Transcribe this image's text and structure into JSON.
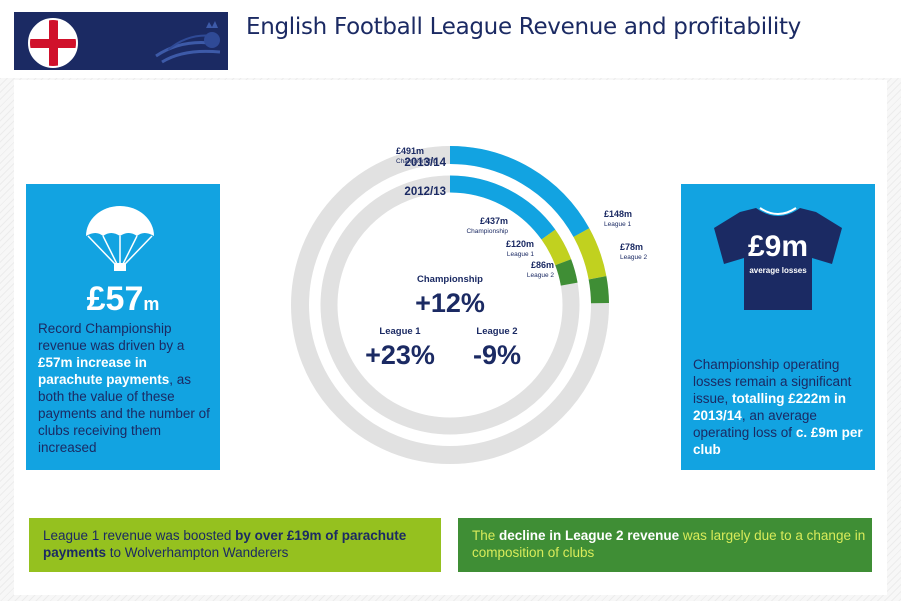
{
  "title": "English Football League Revenue and profitability",
  "colors": {
    "navy": "#1b2a63",
    "cyan": "#12a3e1",
    "lime": "#c1d11f",
    "green": "#3f8e35",
    "ring": "#e1e1e1"
  },
  "left_card": {
    "icon": "parachute-icon",
    "big_value": "£57",
    "big_unit": "m",
    "text_1": "Record Championship revenue was driven by a ",
    "text_bold": "£57m increase in parachute payments",
    "text_2": ", as both the value of these payments and the number of clubs receiving them increased"
  },
  "right_card": {
    "icon": "shirt-icon",
    "big_value": "£9m",
    "big_sub": "average losses",
    "text_1": "Championship operating losses remain a significant issue, ",
    "text_bold_1": "totalling £222m in 2013/14",
    "text_2": ", an average operating loss of ",
    "text_bold_2": "c. £9m per club"
  },
  "center": {
    "championship_label": "Championship",
    "championship_change": "+12%",
    "league1_label": "League 1",
    "league1_change": "+23%",
    "league2_label": "League 2",
    "league2_change": "-9%"
  },
  "bottom": {
    "left_1": "League 1 revenue was boosted ",
    "left_bold": "by over £19m of parachute payments",
    "left_2": " to Wolverhampton Wanderers",
    "right_1": "The ",
    "right_bold": "decline in League 2 revenue",
    "right_2": " was largely due to a change in composition of clubs"
  },
  "chart_data": {
    "type": "donut",
    "series": [
      {
        "name": "2013/14",
        "values": [
          {
            "category": "Championship",
            "label": "£491m",
            "value": 491
          },
          {
            "category": "League 1",
            "label": "£148m",
            "value": 148
          },
          {
            "category": "League 2",
            "label": "£78m",
            "value": 78
          }
        ]
      },
      {
        "name": "2012/13",
        "values": [
          {
            "category": "Championship",
            "label": "£437m",
            "value": 437
          },
          {
            "category": "League 1",
            "label": "£120m",
            "value": 120
          },
          {
            "category": "League 2",
            "label": "£86m",
            "value": 86
          }
        ]
      }
    ]
  }
}
